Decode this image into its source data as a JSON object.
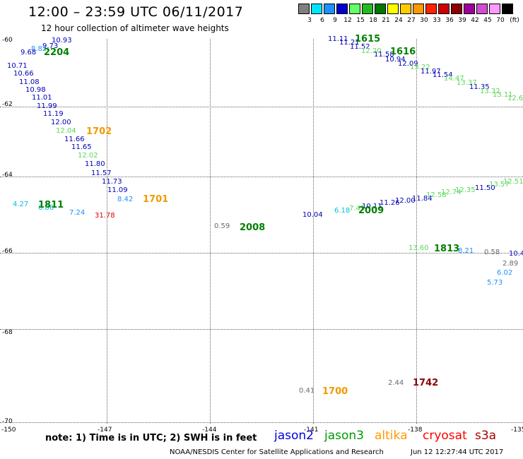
{
  "header": {
    "title": "12:00 – 23:59 UTC 06/11/2017",
    "subtitle": "12 hour collection of altimeter wave heights"
  },
  "color_scale": {
    "unit": "(ft)",
    "bins": [
      {
        "label": "3",
        "color": "#7f7f7f"
      },
      {
        "label": "6",
        "color": "#00e5ff"
      },
      {
        "label": "9",
        "color": "#1e90ff"
      },
      {
        "label": "12",
        "color": "#0000cd"
      },
      {
        "label": "15",
        "color": "#66ff66"
      },
      {
        "label": "18",
        "color": "#22bb22"
      },
      {
        "label": "21",
        "color": "#007700"
      },
      {
        "label": "24",
        "color": "#ffff00"
      },
      {
        "label": "27",
        "color": "#ffcc00"
      },
      {
        "label": "30",
        "color": "#ff9900"
      },
      {
        "label": "33",
        "color": "#ff2200"
      },
      {
        "label": "36",
        "color": "#cc0000"
      },
      {
        "label": "39",
        "color": "#8b0000"
      },
      {
        "label": "42",
        "color": "#a0009a"
      },
      {
        "label": "45",
        "color": "#d24dd2"
      },
      {
        "label": "70",
        "color": "#ff99ff"
      },
      {
        "label": "",
        "color": "#000000"
      }
    ]
  },
  "colors": {
    "gray": "#6b6b6b",
    "cyan": "#00bfe0",
    "sky": "#1e90ff",
    "navy": "#0000b4",
    "lgreen": "#58d858",
    "dgreen": "#008000",
    "orange": "#f09a00",
    "red": "#e00000",
    "maroon": "#8b0000"
  },
  "map": {
    "lat_labels": [
      "-60",
      "-62",
      "-64",
      "-66",
      "-68",
      "-70"
    ],
    "lon_labels": [
      "-150",
      "-147",
      "-144",
      "-141",
      "-138",
      "-135"
    ],
    "observations": [
      {
        "t": "10.93",
        "c": "navy"
      },
      {
        "t": "9.73",
        "c": "navy"
      },
      {
        "t": "8.82",
        "c": "sky"
      },
      {
        "t": "9.68",
        "c": "navy"
      },
      {
        "t": "10.71",
        "c": "navy"
      },
      {
        "t": "10.66",
        "c": "navy"
      },
      {
        "t": "11.08",
        "c": "navy"
      },
      {
        "t": "10.98",
        "c": "navy"
      },
      {
        "t": "11.01",
        "c": "navy"
      },
      {
        "t": "11.99",
        "c": "navy"
      },
      {
        "t": "11.19",
        "c": "navy"
      },
      {
        "t": "12.00",
        "c": "navy"
      },
      {
        "t": "12.04",
        "c": "lgreen"
      },
      {
        "t": "11.66",
        "c": "navy"
      },
      {
        "t": "11.65",
        "c": "navy"
      },
      {
        "t": "12.02",
        "c": "lgreen"
      },
      {
        "t": "11.80",
        "c": "navy"
      },
      {
        "t": "11.57",
        "c": "navy"
      },
      {
        "t": "11.73",
        "c": "navy"
      },
      {
        "t": "11.09",
        "c": "navy"
      },
      {
        "t": "8.42",
        "c": "sky"
      },
      {
        "t": "4.27",
        "c": "cyan"
      },
      {
        "t": "6.86",
        "c": "cyan"
      },
      {
        "t": "7.24",
        "c": "sky"
      },
      {
        "t": "31.78",
        "c": "red"
      },
      {
        "t": "0.59",
        "c": "gray"
      },
      {
        "t": "11.11",
        "c": "navy"
      },
      {
        "t": "11.21",
        "c": "navy"
      },
      {
        "t": "11.52",
        "c": "navy"
      },
      {
        "t": "12.20",
        "c": "lgreen"
      },
      {
        "t": "11.58",
        "c": "navy"
      },
      {
        "t": "10.94",
        "c": "navy"
      },
      {
        "t": "12.09",
        "c": "navy"
      },
      {
        "t": "13.22",
        "c": "lgreen"
      },
      {
        "t": "11.97",
        "c": "navy"
      },
      {
        "t": "11.54",
        "c": "navy"
      },
      {
        "t": "14.47",
        "c": "lgreen"
      },
      {
        "t": "13.37",
        "c": "lgreen"
      },
      {
        "t": "11.35",
        "c": "navy"
      },
      {
        "t": "13.32",
        "c": "lgreen"
      },
      {
        "t": "13.11",
        "c": "lgreen"
      },
      {
        "t": "12.6",
        "c": "lgreen"
      },
      {
        "t": "10.04",
        "c": "navy"
      },
      {
        "t": "6.18",
        "c": "cyan"
      },
      {
        "t": "7.42",
        "c": "lgreen"
      },
      {
        "t": "10.11",
        "c": "navy"
      },
      {
        "t": "11.26",
        "c": "navy"
      },
      {
        "t": "12.00",
        "c": "navy"
      },
      {
        "t": "11.84",
        "c": "navy"
      },
      {
        "t": "12.58",
        "c": "lgreen"
      },
      {
        "t": "12.74",
        "c": "lgreen"
      },
      {
        "t": "12.35",
        "c": "lgreen"
      },
      {
        "t": "11.50",
        "c": "navy"
      },
      {
        "t": "13.57",
        "c": "lgreen"
      },
      {
        "t": "12.51",
        "c": "lgreen"
      },
      {
        "t": "13.60",
        "c": "lgreen"
      },
      {
        "t": "8.21",
        "c": "sky"
      },
      {
        "t": "0.58",
        "c": "gray"
      },
      {
        "t": "10.4",
        "c": "navy"
      },
      {
        "t": "2.89",
        "c": "gray"
      },
      {
        "t": "6.02",
        "c": "sky"
      },
      {
        "t": "5.73",
        "c": "sky"
      },
      {
        "t": "0.41",
        "c": "gray"
      },
      {
        "t": "2.44",
        "c": "gray"
      }
    ],
    "time_labels": [
      {
        "t": "2204",
        "c": "dgreen"
      },
      {
        "t": "1702",
        "c": "orange"
      },
      {
        "t": "1701",
        "c": "orange"
      },
      {
        "t": "1811",
        "c": "dgreen"
      },
      {
        "t": "2008",
        "c": "dgreen"
      },
      {
        "t": "1615",
        "c": "dgreen"
      },
      {
        "t": "1616",
        "c": "dgreen"
      },
      {
        "t": "2009",
        "c": "dgreen"
      },
      {
        "t": "1813",
        "c": "dgreen"
      },
      {
        "t": "1700",
        "c": "orange"
      },
      {
        "t": "1742",
        "c": "maroon"
      }
    ]
  },
  "footer": {
    "note": "note: 1) Time is in UTC; 2) SWH is in feet",
    "satellites": [
      {
        "name": "jason2",
        "color": "#0000dd"
      },
      {
        "name": "jason3",
        "color": "#009900"
      },
      {
        "name": "altika",
        "color": "#ff9900"
      },
      {
        "name": "cryosat",
        "color": "#ff0000"
      },
      {
        "name": "s3a",
        "color": "#aa0000"
      }
    ],
    "credit": "NOAA/NESDIS Center for Satellite Applications and Research",
    "timestamp": "Jun 12 12:27:44 UTC 2017"
  }
}
